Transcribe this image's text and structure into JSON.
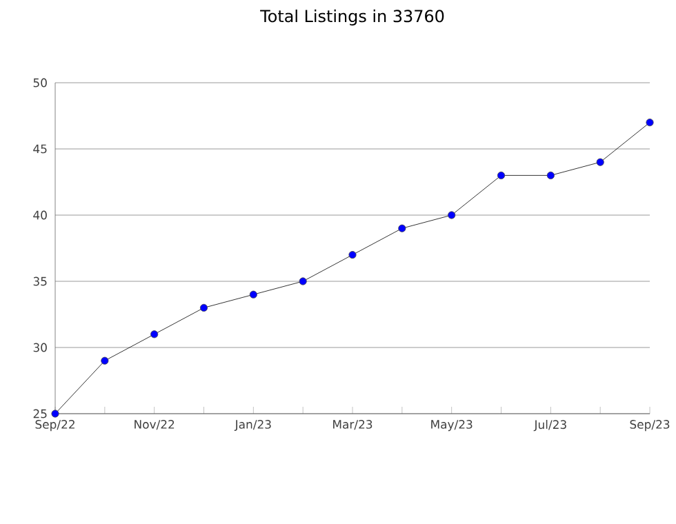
{
  "chart_data": {
    "type": "line",
    "title": "Total Listings in 33760",
    "x": [
      "2022-09",
      "2022-10",
      "2022-11",
      "2022-12",
      "2023-01",
      "2023-02",
      "2023-03",
      "2023-04",
      "2023-05",
      "2023-06",
      "2023-07",
      "2023-08",
      "2023-09"
    ],
    "series": [
      {
        "color": "#0000ff",
        "values": [
          25,
          29,
          31,
          33,
          34,
          35,
          37,
          39,
          40,
          43,
          43,
          44,
          47
        ]
      }
    ],
    "xlim": [
      "2022-09",
      "2023-09"
    ],
    "xticks": [
      {
        "value": "2022-09",
        "label": "Sep/22"
      },
      {
        "value": "2022-10",
        "label": null
      },
      {
        "value": "2022-11",
        "label": "Nov/22"
      },
      {
        "value": "2022-12",
        "label": null
      },
      {
        "value": "2023-01",
        "label": "Jan/23"
      },
      {
        "value": "2023-02",
        "label": null
      },
      {
        "value": "2023-03",
        "label": "Mar/23"
      },
      {
        "value": "2023-04",
        "label": null
      },
      {
        "value": "2023-05",
        "label": "May/23"
      },
      {
        "value": "2023-06",
        "label": null
      },
      {
        "value": "2023-07",
        "label": "Jul/23"
      },
      {
        "value": "2023-08",
        "label": null
      },
      {
        "value": "2023-09",
        "label": "Sep/23"
      }
    ],
    "ylim": [
      25,
      50
    ],
    "yticks": [
      25,
      30,
      35,
      40,
      45,
      50
    ],
    "grid": "y",
    "marker": "circle",
    "line_style": "solid"
  }
}
